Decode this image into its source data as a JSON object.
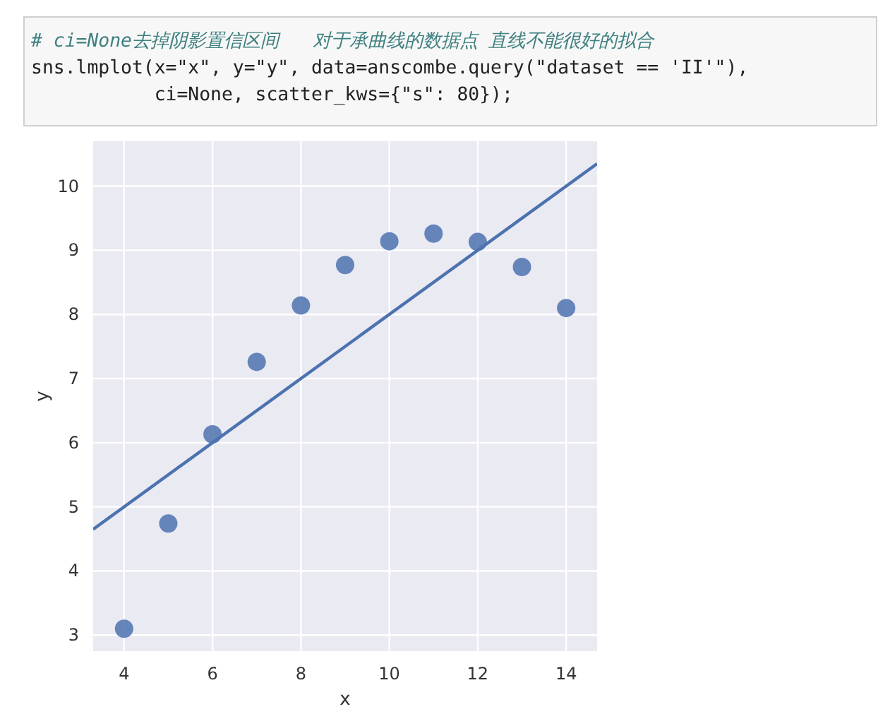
{
  "chart_data": {
    "type": "scatter",
    "xlabel": "x",
    "ylabel": "y",
    "annotations": [
      "# ci=None去掉阴影置信区间   对于承曲线的数据点 直线不能很好的拟合",
      "sns.lmplot(x=\"x\", y=\"y\", data=anscombe.query(\"dataset == 'II'\"),",
      "           ci=None, scatter_kws={\"s\": 80});"
    ],
    "series": [
      {
        "color": "#4c72b0",
        "marker": "circle",
        "x": [
          4,
          5,
          6,
          7,
          8,
          9,
          10,
          11,
          12,
          13,
          14
        ],
        "values": [
          3.1,
          4.74,
          6.13,
          7.26,
          8.14,
          8.77,
          9.14,
          9.26,
          9.13,
          8.74,
          8.1
        ]
      },
      {
        "type": "line",
        "color": "#4c72b0",
        "x": [
          3.3,
          14.7
        ],
        "values": [
          4.65,
          10.35
        ]
      }
    ],
    "xlim": [
      3.3,
      14.7
    ],
    "ylim": [
      2.75,
      10.7
    ],
    "xticks": [
      4,
      6,
      8,
      10,
      12,
      14
    ],
    "yticks": [
      3,
      4,
      5,
      6,
      7,
      8,
      9,
      10
    ],
    "grid": true
  }
}
